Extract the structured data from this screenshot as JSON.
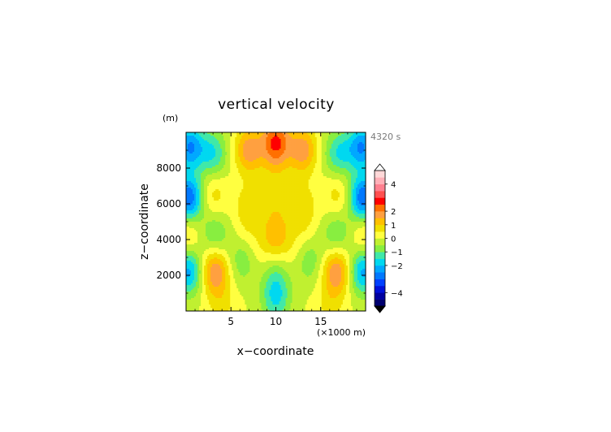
{
  "chart_data": {
    "type": "heatmap",
    "title": "vertical velocity",
    "time_label": "4320 s",
    "xlabel": "x−coordinate",
    "xunit": "(×1000 m)",
    "ylabel": "z−coordinate",
    "yunit": "(m)",
    "xlim": [
      0,
      20
    ],
    "ylim": [
      0,
      10000
    ],
    "xticks": [
      5,
      10,
      15
    ],
    "xtick_labels": [
      "5",
      "10",
      "15"
    ],
    "yticks": [
      2000,
      4000,
      6000,
      8000
    ],
    "ytick_labels": [
      "2000",
      "4000",
      "6000",
      "8000"
    ],
    "colorbar": {
      "levels": [
        -5,
        -4.5,
        -4,
        -3.5,
        -3,
        -2.5,
        -2,
        -1.5,
        -1,
        -0.5,
        0,
        0.5,
        1,
        1.5,
        2,
        2.5,
        3,
        3.5,
        4,
        4.5,
        5
      ],
      "tick_values": [
        -4,
        -2,
        -1,
        0,
        1,
        2,
        4
      ],
      "tick_labels": [
        "−4",
        "−2",
        "−1",
        "0",
        "1",
        "2",
        "4"
      ],
      "colors": [
        "#000070",
        "#0000a0",
        "#0010d8",
        "#0040ff",
        "#0078ff",
        "#00a8ff",
        "#00d8f0",
        "#40e8a8",
        "#88ee40",
        "#c0f030",
        "#ffff40",
        "#f0e000",
        "#ffc000",
        "#ffa040",
        "#ff7000",
        "#ff0000",
        "#ff5050",
        "#ff8090",
        "#ffb0b8",
        "#ffd8d8"
      ],
      "extend": "both",
      "under_color": "#000000",
      "over_color": "#ffffff"
    },
    "features": [
      {
        "x": 0.4,
        "z": 9200,
        "w": -2.5
      },
      {
        "x": 3.0,
        "z": 8800,
        "w": -1.5
      },
      {
        "x": 7.0,
        "z": 9000,
        "w": 1.8
      },
      {
        "x": 10.0,
        "z": 9500,
        "w": 2.5
      },
      {
        "x": 13.0,
        "z": 9000,
        "w": 1.8
      },
      {
        "x": 17.0,
        "z": 8800,
        "w": -1.5
      },
      {
        "x": 19.6,
        "z": 9200,
        "w": -2.5
      },
      {
        "x": 0.3,
        "z": 6300,
        "w": -3.0
      },
      {
        "x": 19.7,
        "z": 6300,
        "w": -3.0
      },
      {
        "x": 3.0,
        "z": 6500,
        "w": 0.8
      },
      {
        "x": 17.0,
        "z": 6500,
        "w": 0.8
      },
      {
        "x": 7.0,
        "z": 6000,
        "w": 0.7
      },
      {
        "x": 13.0,
        "z": 6000,
        "w": 0.7
      },
      {
        "x": 10.0,
        "z": 6000,
        "w": 0.6
      },
      {
        "x": 10.0,
        "z": 8000,
        "w": 0.5
      },
      {
        "x": 3.2,
        "z": 4300,
        "w": -1.0
      },
      {
        "x": 16.8,
        "z": 4300,
        "w": -1.0
      },
      {
        "x": 0.2,
        "z": 4300,
        "w": 0.8
      },
      {
        "x": 19.8,
        "z": 4300,
        "w": 0.8
      },
      {
        "x": 7.0,
        "z": 4700,
        "w": 0.4
      },
      {
        "x": 13.0,
        "z": 4700,
        "w": 0.4
      },
      {
        "x": 10.0,
        "z": 4200,
        "w": 1.2
      },
      {
        "x": 3.2,
        "z": 2200,
        "w": 2.0
      },
      {
        "x": 16.8,
        "z": 2200,
        "w": 2.0
      },
      {
        "x": 0.3,
        "z": 2200,
        "w": -2.2
      },
      {
        "x": 19.7,
        "z": 2200,
        "w": -2.2
      },
      {
        "x": 6.3,
        "z": 2800,
        "w": -0.9
      },
      {
        "x": 13.7,
        "z": 2800,
        "w": -0.9
      },
      {
        "x": 8.0,
        "z": 3200,
        "w": 0.3
      },
      {
        "x": 12.0,
        "z": 3200,
        "w": 0.3
      },
      {
        "x": 10.0,
        "z": 1800,
        "w": -0.9
      },
      {
        "x": 10.0,
        "z": 600,
        "w": -1.3
      },
      {
        "x": 4.0,
        "z": 300,
        "w": 0.6
      },
      {
        "x": 16.0,
        "z": 300,
        "w": 0.6
      }
    ]
  }
}
